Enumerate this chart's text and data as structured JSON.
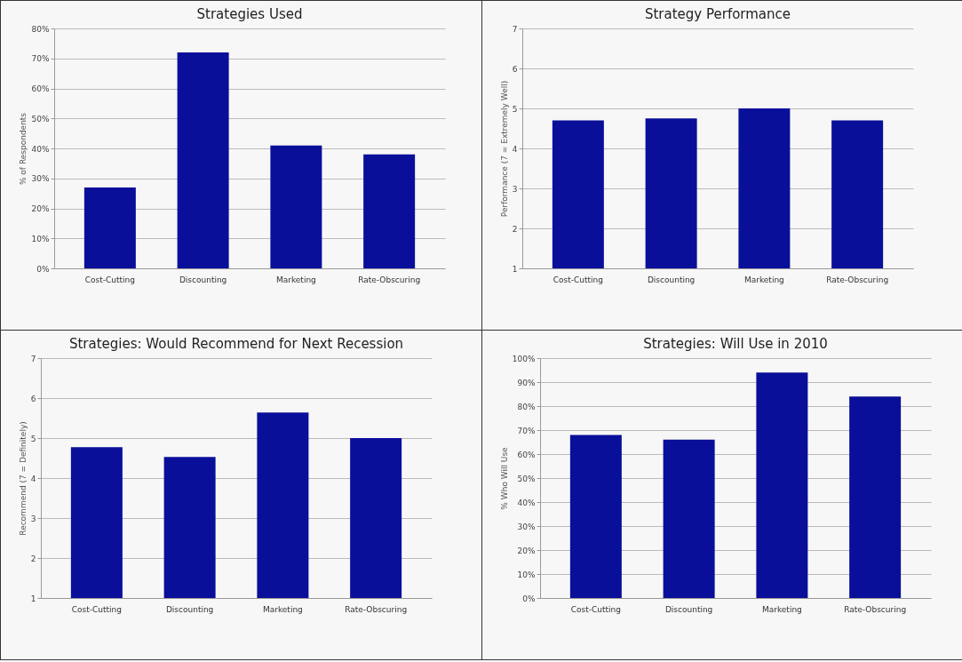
{
  "chart_data": [
    {
      "type": "bar",
      "title": "Strategies Used",
      "ylabel": "% of Respondents",
      "categories": [
        "Cost-Cutting",
        "Discounting",
        "Marketing",
        "Rate-Obscuring"
      ],
      "values": [
        27,
        72,
        41,
        38
      ],
      "color": "#0a0f9a",
      "ylim": [
        0,
        80
      ],
      "yticks": [
        {
          "value": 0,
          "label": "0%"
        },
        {
          "value": 10,
          "label": "10%"
        },
        {
          "value": 20,
          "label": "20%"
        },
        {
          "value": 30,
          "label": "30%"
        },
        {
          "value": 40,
          "label": "40%"
        },
        {
          "value": 50,
          "label": "50%"
        },
        {
          "value": 60,
          "label": "60%"
        },
        {
          "value": 70,
          "label": "70%"
        },
        {
          "value": 80,
          "label": "80%"
        }
      ],
      "grid": "y"
    },
    {
      "type": "bar",
      "title": "Strategy Performance",
      "ylabel": "Performance (7 = Extremely Well)",
      "categories": [
        "Cost-Cutting",
        "Discounting",
        "Marketing",
        "Rate-Obscuring"
      ],
      "values": [
        4.7,
        4.75,
        5.0,
        4.7
      ],
      "color": "#0a0f9a",
      "ylim": [
        1,
        7
      ],
      "yticks": [
        1,
        2,
        3,
        4,
        5,
        6,
        7
      ],
      "grid": "y"
    },
    {
      "type": "bar",
      "title": "Strategies:  Would Recommend for Next Recession",
      "ylabel": "Recommend (7 = Definitely)",
      "categories": [
        "Cost-Cutting",
        "Discounting",
        "Marketing",
        "Rate-Obscuring"
      ],
      "values": [
        4.77,
        4.53,
        5.64,
        5.0
      ],
      "color": "#0a0f9a",
      "ylim": [
        1,
        7
      ],
      "yticks": [
        1,
        2,
        3,
        4,
        5,
        6,
        7
      ],
      "grid": "y"
    },
    {
      "type": "bar",
      "title": "Strategies:  Will Use in 2010",
      "ylabel": "% Who Will Use",
      "categories": [
        "Cost-Cutting",
        "Discounting",
        "Marketing",
        "Rate-Obscuring"
      ],
      "values": [
        68,
        66,
        94,
        84
      ],
      "color": "#0a0f9a",
      "ylim": [
        0,
        100
      ],
      "yticks": [
        {
          "value": 0,
          "label": "0%"
        },
        {
          "value": 10,
          "label": "10%"
        },
        {
          "value": 20,
          "label": "20%"
        },
        {
          "value": 30,
          "label": "30%"
        },
        {
          "value": 40,
          "label": "40%"
        },
        {
          "value": 50,
          "label": "50%"
        },
        {
          "value": 60,
          "label": "60%"
        },
        {
          "value": 70,
          "label": "70%"
        },
        {
          "value": 80,
          "label": "80%"
        },
        {
          "value": 90,
          "label": "90%"
        },
        {
          "value": 100,
          "label": "100%"
        }
      ],
      "grid": "y"
    }
  ]
}
